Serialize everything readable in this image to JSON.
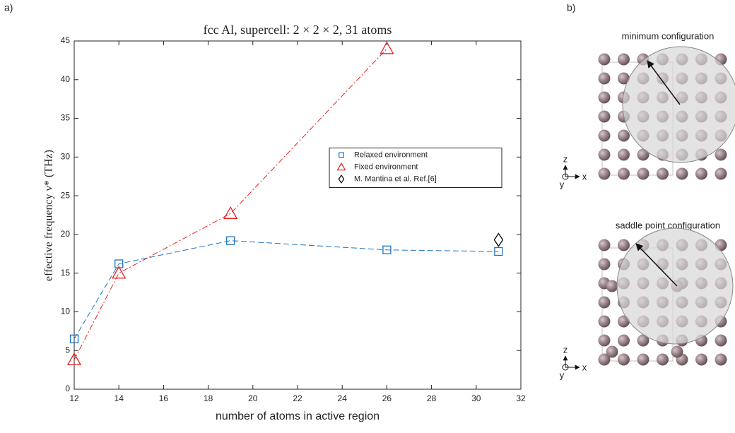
{
  "panel_a_label": "a)",
  "chart_data": {
    "type": "line",
    "title": "fcc Al, supercell: 2 × 2 × 2, 31 atoms",
    "x_label": "number of atoms in active region",
    "y_label": "effective frequency ν* (THz)",
    "xlim": [
      12,
      32
    ],
    "xticks": [
      12,
      14,
      16,
      18,
      20,
      22,
      24,
      26,
      28,
      30,
      32
    ],
    "ylim": [
      0,
      45
    ],
    "yticks": [
      0,
      5,
      10,
      15,
      20,
      25,
      30,
      35,
      40,
      45
    ],
    "legend": "center right",
    "series": [
      {
        "name": "Relaxed environment",
        "color": "#1a72c2",
        "marker": "square",
        "linestyle": "dashed",
        "x": [
          12,
          14,
          19,
          26,
          31
        ],
        "values": [
          6.5,
          16.2,
          19.2,
          18.0,
          17.8
        ]
      },
      {
        "name": "Fixed environment",
        "color": "#e8201f",
        "marker": "triangle",
        "linestyle": "dashdot",
        "x": [
          12,
          14,
          19,
          26
        ],
        "values": [
          3.8,
          15.0,
          22.7,
          44.0
        ]
      },
      {
        "name": "M. Mantina et al. Ref.[6]",
        "color": "#000000",
        "marker": "diamond",
        "linestyle": "none",
        "x": [
          31
        ],
        "values": [
          19.3
        ]
      }
    ]
  },
  "panel_b": {
    "label": "b)",
    "configs": [
      {
        "title": "minimum configuration",
        "axes": [
          "z",
          "x",
          "y"
        ]
      },
      {
        "title": "saddle point configuration",
        "axes": [
          "z",
          "x",
          "y"
        ]
      }
    ]
  }
}
